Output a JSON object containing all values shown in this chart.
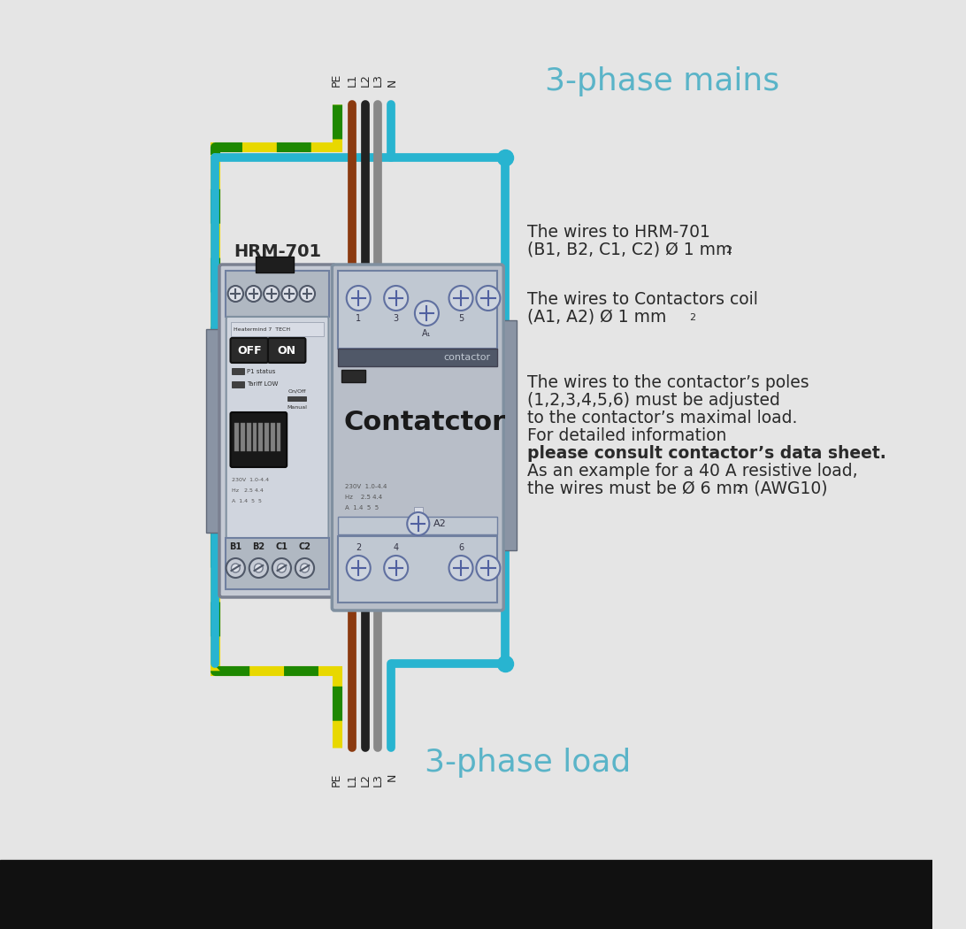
{
  "bg_color": "#e5e5e5",
  "black_bar_color": "#111111",
  "title_3phase_mains": "3-phase mains",
  "title_3phase_load": "3-phase load",
  "title_color": "#5ab4c8",
  "wire_blue": "#28b4d0",
  "wire_brown": "#8B3A10",
  "wire_black": "#222222",
  "wire_gray": "#888888",
  "wire_red": "#dd2222",
  "hrm_label": "HRM-701",
  "contactor_label": "Contatctor",
  "contactor_small_label": "contactor",
  "off_label": "OFF",
  "on_label": "ON",
  "b1_label": "B1",
  "b2_label": "B2",
  "c1_label": "C1",
  "c2_label": "C2",
  "a2_label": "A2",
  "text1a": "The wires to HRM-701",
  "text1b": "(B1, B2, C1, C2) Ø 1 mm",
  "text2a": "The wires to Contactors coil",
  "text2b": "(A1, A2) Ø 1 mm",
  "text3a": "The wires to the contactor’s poles",
  "text3b": "(1,2,3,4,5,6) must be adjusted",
  "text3c": "to the contactor’s maximal load.",
  "text3d": "For detailed information",
  "text3e": "please consult contactor’s data sheet.",
  "text3f": "As an example for a 40 A resistive load,",
  "text3g": "the wires must be Ø 6 mm",
  "text3h": " (AWG10)"
}
